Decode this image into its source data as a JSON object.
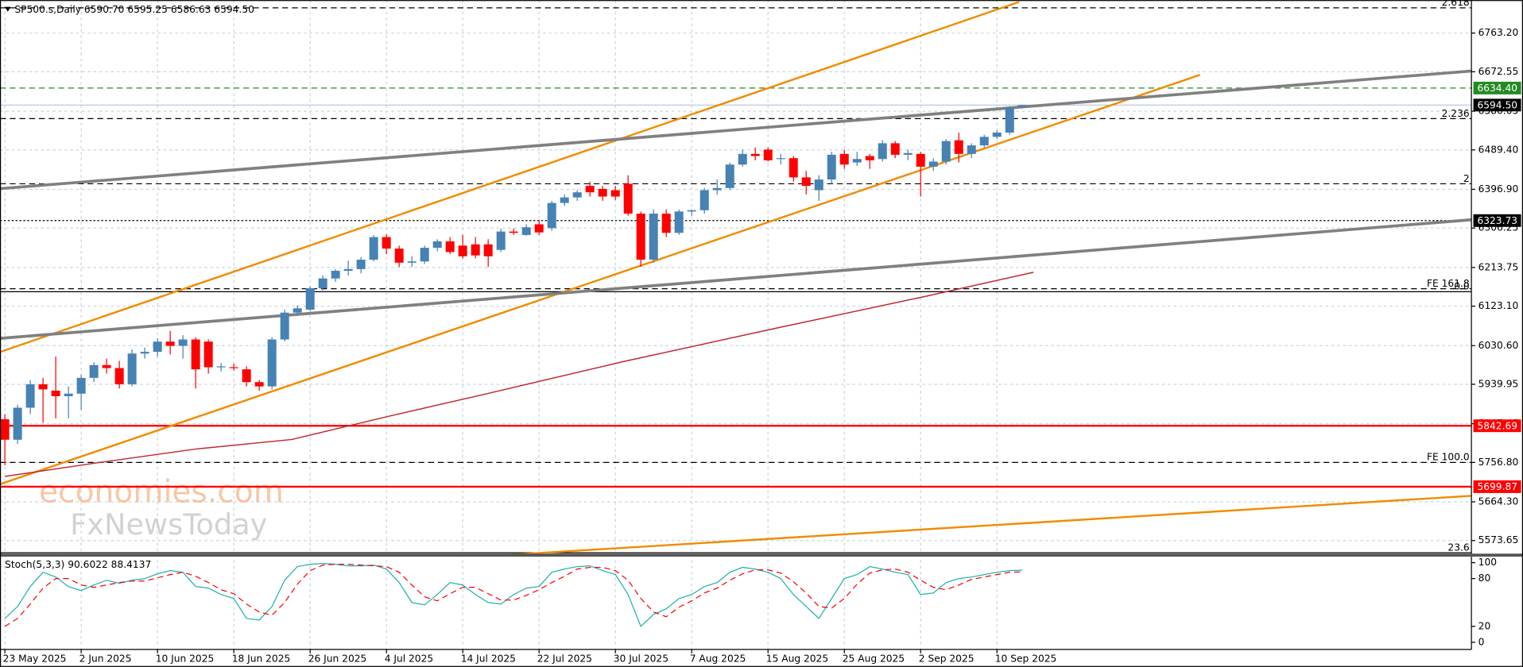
{
  "chart_data": [
    {
      "type": "candlestick",
      "title": "SP500.s,Daily  6590.70 6595.25 6586.63 6594.50",
      "categories": [
        "23 May 2025",
        null,
        null,
        null,
        null,
        null,
        "2 Jun 2025",
        null,
        null,
        null,
        null,
        null,
        "10 Jun 2025",
        null,
        null,
        null,
        null,
        null,
        "18 Jun 2025",
        null,
        null,
        null,
        null,
        null,
        "26 Jun 2025",
        null,
        null,
        null,
        null,
        null,
        "4 Jul 2025",
        null,
        null,
        null,
        null,
        null,
        "14 Jul 2025",
        null,
        null,
        null,
        null,
        null,
        "22 Jul 2025",
        null,
        null,
        null,
        null,
        null,
        "30 Jul 2025",
        null,
        null,
        null,
        null,
        null,
        "7 Aug 2025",
        null,
        null,
        null,
        null,
        null,
        "15 Aug 2025",
        null,
        null,
        null,
        null,
        null,
        "25 Aug 2025",
        null,
        null,
        null,
        null,
        null,
        "2 Sep 2025",
        null,
        null,
        null,
        null,
        null,
        "10 Sep 2025",
        null,
        null
      ],
      "open": [
        5858,
        5810,
        5885,
        5940,
        5925,
        5912,
        5918,
        5955,
        5985,
        5978,
        5940,
        6012,
        6016,
        6040,
        6030,
        6045,
        6040,
        5980,
        5980,
        5975,
        5945,
        5935,
        6045,
        6108,
        6115,
        6165,
        6188,
        6206,
        6210,
        6232,
        6285,
        6258,
        6225,
        6228,
        6260,
        6275,
        6265,
        6268,
        6268,
        6255,
        6298,
        6290,
        6315,
        6306,
        6365,
        6378,
        6405,
        6398,
        6395,
        6410,
        6340,
        6232,
        6340,
        6295,
        6345,
        6348,
        6395,
        6400,
        6455,
        6480,
        6490,
        6468,
        6470,
        6425,
        6395,
        6420,
        6480,
        6460,
        6475,
        6468,
        6505,
        6478,
        6480,
        6450,
        6462,
        6512,
        6480,
        6500,
        6520,
        6530,
        6590.7
      ],
      "high": [
        5870,
        5892,
        5950,
        5955,
        6005,
        5935,
        5962,
        5992,
        6000,
        5995,
        6022,
        6026,
        6048,
        6065,
        6055,
        6050,
        6045,
        5990,
        5988,
        5982,
        5950,
        6050,
        6115,
        6125,
        6170,
        6195,
        6210,
        6230,
        6238,
        6290,
        6292,
        6265,
        6240,
        6265,
        6280,
        6285,
        6290,
        6285,
        6280,
        6305,
        6305,
        6315,
        6325,
        6370,
        6385,
        6395,
        6415,
        6405,
        6405,
        6430,
        6345,
        6350,
        6350,
        6350,
        6350,
        6400,
        6420,
        6460,
        6490,
        6495,
        6495,
        6480,
        6475,
        6440,
        6430,
        6485,
        6490,
        6485,
        6480,
        6512,
        6510,
        6490,
        6485,
        6470,
        6515,
        6530,
        6505,
        6525,
        6535,
        6592,
        6595.25
      ],
      "low": [
        5750,
        5800,
        5870,
        5850,
        5860,
        5860,
        5880,
        5945,
        5965,
        5930,
        5935,
        6000,
        6005,
        6010,
        6000,
        5930,
        5965,
        5970,
        5972,
        5935,
        5925,
        5928,
        6040,
        6100,
        6112,
        6160,
        6180,
        6195,
        6200,
        6228,
        6245,
        6215,
        6215,
        6222,
        6252,
        6245,
        6235,
        6235,
        6215,
        6250,
        6290,
        6288,
        6290,
        6300,
        6358,
        6370,
        6380,
        6370,
        6372,
        6335,
        6215,
        6225,
        6285,
        6290,
        6335,
        6340,
        6385,
        6395,
        6450,
        6465,
        6462,
        6455,
        6415,
        6385,
        6370,
        6410,
        6445,
        6452,
        6445,
        6462,
        6470,
        6465,
        6380,
        6440,
        6455,
        6460,
        6470,
        6495,
        6515,
        6525,
        6586.63
      ],
      "close": [
        5810,
        5885,
        5940,
        5928,
        5912,
        5918,
        5955,
        5985,
        5978,
        5940,
        6012,
        6016,
        6040,
        6030,
        6045,
        5975,
        5980,
        5982,
        5978,
        5945,
        5935,
        6045,
        6108,
        6118,
        6165,
        6188,
        6206,
        6210,
        6232,
        6285,
        6258,
        6225,
        6228,
        6260,
        6275,
        6250,
        6240,
        6242,
        6240,
        6298,
        6295,
        6308,
        6296,
        6365,
        6378,
        6390,
        6390,
        6380,
        6380,
        6340,
        6232,
        6340,
        6295,
        6345,
        6348,
        6395,
        6400,
        6455,
        6480,
        6475,
        6465,
        6470,
        6425,
        6405,
        6420,
        6478,
        6455,
        6468,
        6465,
        6505,
        6478,
        6482,
        6450,
        6462,
        6510,
        6480,
        6500,
        6520,
        6530,
        6588,
        6594.5
      ],
      "up_color": "#4682b4",
      "down_color": "#ff0000",
      "ylim": [
        5541.7,
        6836.1
      ],
      "yticks": [
        {
          "value": 6763.2,
          "label": "6763.20"
        },
        {
          "value": 6672.55,
          "label": "6672.55"
        },
        {
          "value": 6580.05,
          "label": "6580.05"
        },
        {
          "value": 6489.4,
          "label": "6489.40"
        },
        {
          "value": 6396.9,
          "label": "6396.90"
        },
        {
          "value": 6306.25,
          "label": "6306.25"
        },
        {
          "value": 6213.75,
          "label": "6213.75"
        },
        {
          "value": 6123.1,
          "label": "6123.10"
        },
        {
          "value": 6030.6,
          "label": "6030.60"
        },
        {
          "value": 5939.95,
          "label": "5939.95"
        },
        {
          "value": 5847.45,
          "label": "5847.45"
        },
        {
          "value": 5756.8,
          "label": "5756.80"
        },
        {
          "value": 5664.3,
          "label": "5664.30"
        },
        {
          "value": 5573.65,
          "label": "5573.65"
        }
      ],
      "grid": true,
      "levels": [
        {
          "label": "2.618",
          "value": 6822.5,
          "color": "#000000",
          "style": "dashed"
        },
        {
          "label": "6634.40",
          "value": 6634.4,
          "color": "#228b22",
          "style": "dashed",
          "tag": true,
          "tag_color": "#228b22"
        },
        {
          "label": "6594.50",
          "value": 6594.5,
          "color": "#b0c4de",
          "style": "solid",
          "tag": true,
          "tag_color": "#000000"
        },
        {
          "label": "2.236",
          "value": 6562.7,
          "color": "#000000",
          "style": "dashed"
        },
        {
          "label": "2",
          "value": 6410,
          "color": "#000000",
          "style": "dashed"
        },
        {
          "label": "6323.73",
          "value": 6323.73,
          "color": "#000000",
          "style": "dotted",
          "tag": true,
          "tag_color": "#000000"
        },
        {
          "label": "FE 161.8",
          "value": 6163.9,
          "color": "#000000",
          "style": "dashed"
        },
        {
          "label": "0.0",
          "value": 6157,
          "color": "#000000",
          "style": "solid"
        },
        {
          "label": "5842.69",
          "value": 5842.69,
          "color": "#ff0000",
          "style": "solid",
          "tag": true,
          "tag_color": "#ff0000"
        },
        {
          "label": "FE 100.0",
          "value": 5756.8,
          "color": "#000000",
          "style": "dashed"
        },
        {
          "label": "5699.87",
          "value": 5699.87,
          "color": "#ff0000",
          "style": "solid",
          "tag": true,
          "tag_color": "#ff0000"
        },
        {
          "label": "23.6",
          "value": 5545,
          "color": "#000000",
          "style": "solid"
        }
      ]
    },
    {
      "type": "line",
      "title": "Stoch(5,3,3) 90.6022 88.4137",
      "series": [
        {
          "color": "#20b2aa",
          "style": "solid",
          "values": [
            30,
            45,
            70,
            88,
            82,
            70,
            65,
            72,
            78,
            74,
            78,
            80,
            86,
            90,
            88,
            70,
            68,
            60,
            55,
            30,
            28,
            45,
            78,
            95,
            98,
            99,
            98,
            96,
            96,
            97,
            92,
            75,
            50,
            47,
            60,
            75,
            72,
            60,
            50,
            48,
            60,
            68,
            70,
            88,
            92,
            95,
            96,
            90,
            85,
            60,
            20,
            35,
            42,
            55,
            60,
            70,
            75,
            88,
            94,
            92,
            88,
            80,
            60,
            45,
            30,
            55,
            80,
            85,
            95,
            92,
            88,
            85,
            60,
            62,
            75,
            80,
            82,
            85,
            88,
            90,
            90.6022
          ]
        },
        {
          "color": "#ff0000",
          "style": "dashed",
          "values": [
            20,
            30,
            48,
            68,
            80,
            80,
            72,
            69,
            72,
            75,
            77,
            77,
            81,
            85,
            88,
            83,
            75,
            66,
            61,
            48,
            38,
            34,
            50,
            73,
            90,
            97,
            98,
            98,
            97,
            96,
            95,
            88,
            72,
            57,
            52,
            61,
            69,
            69,
            61,
            53,
            53,
            59,
            66,
            75,
            83,
            92,
            94,
            94,
            90,
            78,
            55,
            38,
            32,
            44,
            52,
            62,
            68,
            78,
            86,
            91,
            91,
            87,
            76,
            62,
            45,
            43,
            55,
            73,
            87,
            91,
            92,
            88,
            78,
            69,
            66,
            72,
            79,
            82,
            85,
            88,
            88.4137
          ]
        }
      ],
      "ylim": [
        -9,
        107
      ],
      "yticks": [
        0,
        20,
        80,
        100
      ]
    }
  ],
  "watermark": {
    "line1": "economies.com",
    "line2": "FxNewsToday"
  }
}
